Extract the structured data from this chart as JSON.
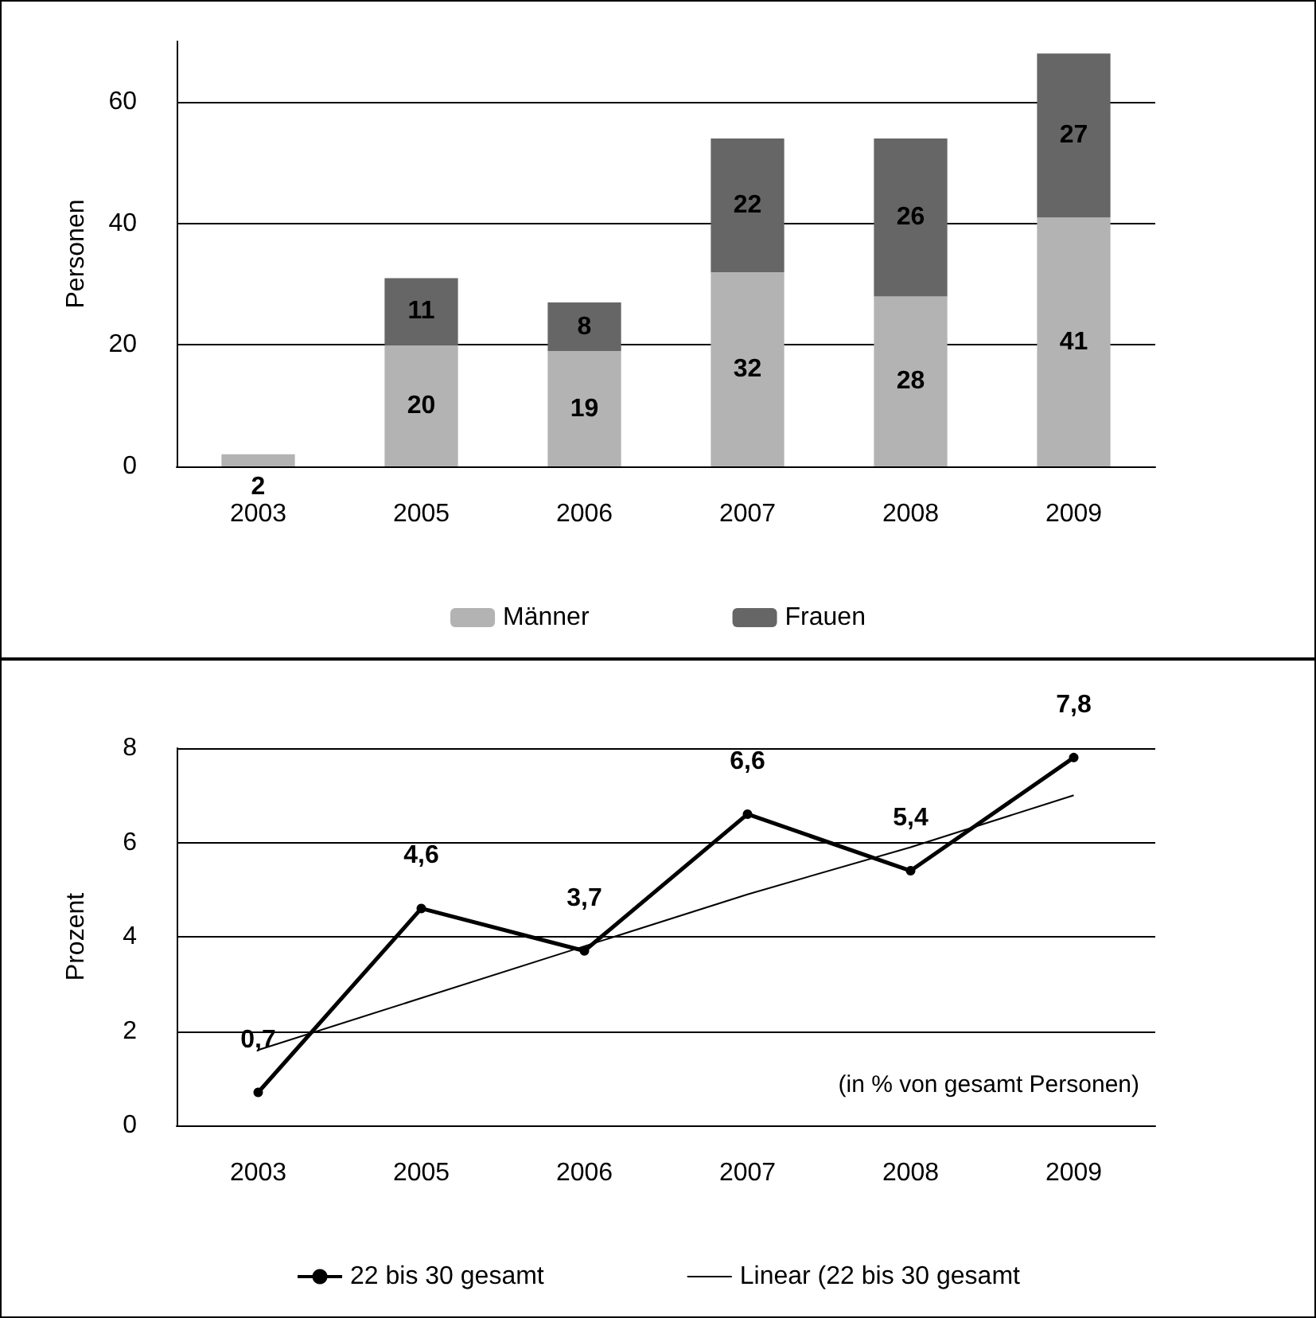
{
  "chart_data": [
    {
      "type": "bar",
      "stacked": true,
      "ylabel": "Personen",
      "categories": [
        "2003",
        "2005",
        "2006",
        "2007",
        "2008",
        "2009"
      ],
      "series": [
        {
          "name": "Männer",
          "color": "#b3b3b3",
          "values": [
            2,
            20,
            19,
            32,
            28,
            41
          ]
        },
        {
          "name": "Frauen",
          "color": "#666666",
          "values": [
            null,
            11,
            8,
            22,
            26,
            27
          ]
        }
      ],
      "ylim": [
        0,
        70
      ],
      "yticks": [
        0,
        20,
        40,
        60
      ],
      "grid": "y",
      "legend": "bottom",
      "data_labels": true
    },
    {
      "type": "line",
      "ylabel": "Prozent",
      "categories": [
        "2003",
        "2005",
        "2006",
        "2007",
        "2008",
        "2009"
      ],
      "series": [
        {
          "name": "22 bis 30 gesamt",
          "color": "#000000",
          "values": [
            0.7,
            4.6,
            3.7,
            6.6,
            5.4,
            7.8
          ],
          "value_labels": [
            "0,7",
            "4,6",
            "3,7",
            "6,6",
            "5,4",
            "7,8"
          ],
          "marker": "circle"
        },
        {
          "name": "Linear (22 bis 30 gesamt",
          "color": "#000000",
          "values": [
            1.6,
            2.7,
            3.8,
            4.9,
            5.9,
            7.0
          ],
          "marker": "none"
        }
      ],
      "ylim": [
        0,
        8
      ],
      "yticks": [
        0,
        2,
        4,
        6,
        8
      ],
      "grid": "y",
      "legend": "bottom",
      "line_style": "solid",
      "annotations": [
        "(in % von gesamt Personen)"
      ]
    }
  ]
}
